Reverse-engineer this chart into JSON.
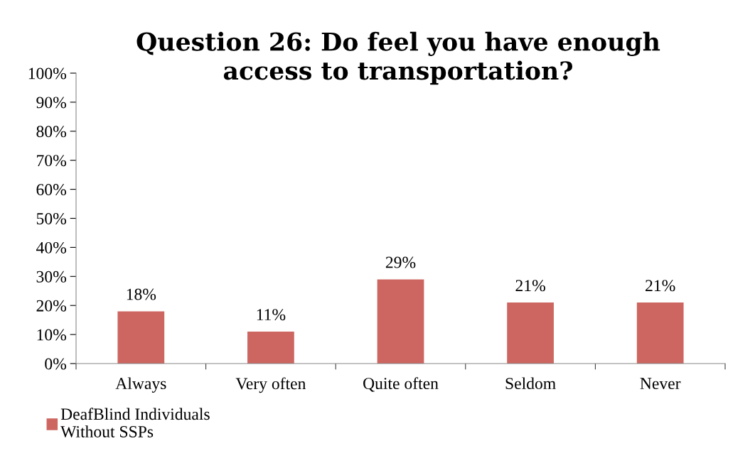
{
  "chart_data": {
    "type": "bar",
    "title": "Question 26: Do feel you have enough\naccess to transportation?",
    "categories": [
      "Always",
      "Very often",
      "Quite often",
      "Seldom",
      "Never"
    ],
    "series": [
      {
        "name": "DeafBlind Individuals\nWithout SSPs",
        "color": "#cd6660",
        "values": [
          18,
          11,
          29,
          21,
          21
        ],
        "value_labels": [
          "18%",
          "11%",
          "29%",
          "21%",
          "21%"
        ]
      }
    ],
    "ylim": [
      0,
      100
    ],
    "yticks": [
      {
        "value": 0,
        "label": "0%"
      },
      {
        "value": 10,
        "label": "10%"
      },
      {
        "value": 20,
        "label": "20%"
      },
      {
        "value": 30,
        "label": "30%"
      },
      {
        "value": 40,
        "label": "40%"
      },
      {
        "value": 50,
        "label": "50%"
      },
      {
        "value": 60,
        "label": "60%"
      },
      {
        "value": 70,
        "label": "70%"
      },
      {
        "value": 80,
        "label": "80%"
      },
      {
        "value": 90,
        "label": "90%"
      },
      {
        "value": 100,
        "label": "100%"
      }
    ],
    "grid": false,
    "legend": "bottom left"
  }
}
